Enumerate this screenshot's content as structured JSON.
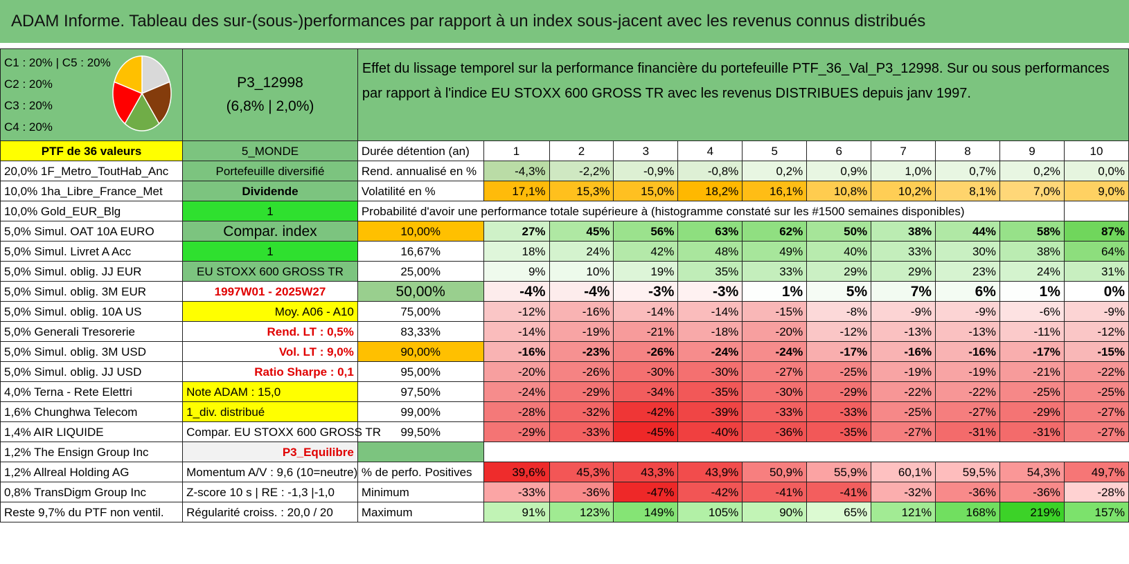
{
  "title": "ADAM Informe. Tableau des sur-(sous-)performances par rapport à un index sous-jacent avec les revenus connus distribués",
  "pie": {
    "legend": [
      "C1 : 20% | C5 : 20%",
      "C2 : 20%",
      "C3 : 20%",
      "C4 : 20%"
    ],
    "slices": [
      {
        "value": 20,
        "color": "#d9d9d9"
      },
      {
        "value": 20,
        "color": "#843c0c"
      },
      {
        "value": 20,
        "color": "#70ad47"
      },
      {
        "value": 20,
        "color": "#ff0000"
      },
      {
        "value": 20,
        "color": "#ffc000"
      }
    ]
  },
  "header": {
    "code": "P3_12998",
    "code_sub": "(6,8% | 2,0%)",
    "description": "Effet du lissage temporel sur la performance financière du portefeuille PTF_36_Val_P3_12998. Sur ou sous performances par rapport à l'indice EU STOXX 600 GROSS TR avec les revenus DISTRIBUES depuis janv 1997."
  },
  "holdings": [
    "PTF de 36 valeurs",
    "20,0% 1F_Metro_ToutHab_Anc",
    "10,0% 1ha_Libre_France_Met",
    "10,0% Gold_EUR_Blg",
    "5,0% Simul. OAT 10A EURO",
    "5,0% Simul. Livret A Acc",
    "5,0% Simul. oblig. JJ EUR",
    "5,0% Simul. oblig. 3M EUR",
    "5,0% Simul. oblig. 10A US",
    "5,0% Generali Tresorerie",
    "5,0% Simul. oblig. 3M USD",
    "5,0% Simul. oblig. JJ USD",
    "4,0% Terna - Rete Elettri",
    "1,6% Chunghwa Telecom",
    "1,4% AIR LIQUIDE",
    "1,2% The Ensign Group Inc",
    "1,2% Allreal Holding AG",
    "0,8% TransDigm Group Inc",
    "Reste 9,7% du PTF non ventil."
  ],
  "info": [
    "5_MONDE",
    "Portefeuille diversifié",
    "Dividende",
    "1",
    "Compar. index",
    "1",
    "EU STOXX 600 GROSS TR",
    "1997W01 - 2025W27",
    "Moy. A06 - A10",
    "Rend. LT : 0,5%",
    "Vol. LT : 9,0%",
    "Ratio Sharpe : 0,1",
    "Note ADAM : 15,0",
    "1_div. distribué",
    "Compar. EU STOXX 600 GROSS TR",
    "P3_Equilibre",
    "Momentum A/V : 9,6 (10=neutre)",
    "Z-score 10 s | RE : -1,3 |-1,0",
    "Régularité croiss. : 20,0 / 20"
  ],
  "table": {
    "duration_label": "Durée détention (an)",
    "years": [
      "1",
      "2",
      "3",
      "4",
      "5",
      "6",
      "7",
      "8",
      "9",
      "10"
    ],
    "rend_label": "Rend. annualisé en %",
    "rend": [
      "-4,3%",
      "-2,2%",
      "-0,9%",
      "-0,8%",
      "0,2%",
      "0,9%",
      "1,0%",
      "0,7%",
      "0,2%",
      "0,0%"
    ],
    "vol_label": "Volatilité en %",
    "vol": [
      "17,1%",
      "15,3%",
      "15,0%",
      "18,2%",
      "16,1%",
      "10,8%",
      "10,2%",
      "8,1%",
      "7,0%",
      "9,0%"
    ],
    "prob_label": "Probabilité d'avoir une performance totale supérieure à (histogramme constaté sur les #1500 semaines disponibles)",
    "prob_rows": [
      {
        "pct": "10,00%",
        "values": [
          "27%",
          "45%",
          "56%",
          "63%",
          "62%",
          "50%",
          "38%",
          "44%",
          "58%",
          "87%"
        ]
      },
      {
        "pct": "16,67%",
        "values": [
          "18%",
          "24%",
          "42%",
          "48%",
          "49%",
          "40%",
          "33%",
          "30%",
          "38%",
          "64%"
        ]
      },
      {
        "pct": "25,00%",
        "values": [
          "9%",
          "10%",
          "19%",
          "35%",
          "33%",
          "29%",
          "29%",
          "23%",
          "24%",
          "31%"
        ]
      },
      {
        "pct": "50,00%",
        "values": [
          "-4%",
          "-4%",
          "-3%",
          "-3%",
          "1%",
          "5%",
          "7%",
          "6%",
          "1%",
          "0%"
        ]
      },
      {
        "pct": "75,00%",
        "values": [
          "-12%",
          "-16%",
          "-14%",
          "-14%",
          "-15%",
          "-8%",
          "-9%",
          "-9%",
          "-6%",
          "-9%"
        ]
      },
      {
        "pct": "83,33%",
        "values": [
          "-14%",
          "-19%",
          "-21%",
          "-18%",
          "-20%",
          "-12%",
          "-13%",
          "-13%",
          "-11%",
          "-12%"
        ]
      },
      {
        "pct": "90,00%",
        "values": [
          "-16%",
          "-23%",
          "-26%",
          "-24%",
          "-24%",
          "-17%",
          "-16%",
          "-16%",
          "-17%",
          "-15%"
        ]
      },
      {
        "pct": "95,00%",
        "values": [
          "-20%",
          "-26%",
          "-30%",
          "-30%",
          "-27%",
          "-25%",
          "-19%",
          "-19%",
          "-21%",
          "-22%"
        ]
      },
      {
        "pct": "97,50%",
        "values": [
          "-24%",
          "-29%",
          "-34%",
          "-35%",
          "-30%",
          "-29%",
          "-22%",
          "-22%",
          "-25%",
          "-25%"
        ]
      },
      {
        "pct": "99,00%",
        "values": [
          "-28%",
          "-32%",
          "-42%",
          "-39%",
          "-33%",
          "-33%",
          "-25%",
          "-27%",
          "-29%",
          "-27%"
        ]
      },
      {
        "pct": "99,50%",
        "values": [
          "-29%",
          "-33%",
          "-45%",
          "-40%",
          "-36%",
          "-35%",
          "-27%",
          "-31%",
          "-31%",
          "-27%"
        ]
      }
    ],
    "pos_label": "% de perfo. Positives",
    "pos": [
      "39,6%",
      "45,3%",
      "43,3%",
      "43,9%",
      "50,9%",
      "55,9%",
      "60,1%",
      "59,5%",
      "54,3%",
      "49,7%"
    ],
    "min_label": "Minimum",
    "min": [
      "-33%",
      "-36%",
      "-47%",
      "-42%",
      "-41%",
      "-41%",
      "-32%",
      "-36%",
      "-36%",
      "-28%"
    ],
    "max_label": "Maximum",
    "max": [
      "91%",
      "123%",
      "149%",
      "105%",
      "90%",
      "65%",
      "121%",
      "168%",
      "219%",
      "157%"
    ]
  },
  "colors": {
    "header_green": "#7cc47f",
    "bright_green": "#2fe02f",
    "yellow": "#ffff00",
    "orange": "#ffc000",
    "red_text": "#e00000"
  }
}
